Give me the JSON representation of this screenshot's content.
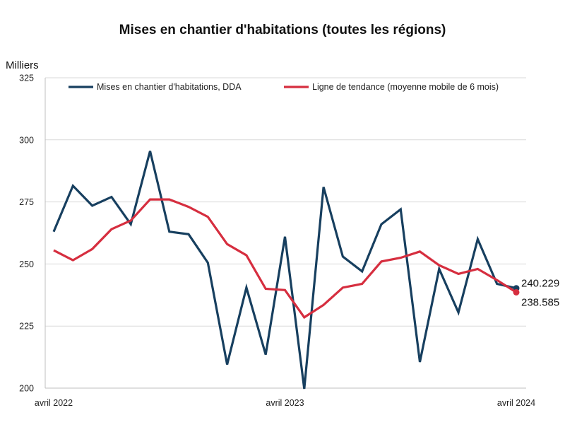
{
  "chart_data": {
    "type": "line",
    "title": "Mises en chantier d'habitations (toutes les régions)",
    "ylabel": "Milliers",
    "xlabel": "",
    "ylim": [
      200,
      325
    ],
    "yticks": [
      "200",
      "225",
      "250",
      "275",
      "300",
      "325"
    ],
    "x_tick_labels": [
      {
        "index": 0,
        "label": "avril 2022"
      },
      {
        "index": 12,
        "label": "avril 2023"
      },
      {
        "index": 24,
        "label": "avril 2024"
      }
    ],
    "series": [
      {
        "name": "Mises en chantier d'habitations, DDA",
        "color": "#173f5f",
        "values": [
          263,
          281.5,
          273.5,
          277,
          266,
          295.5,
          263,
          262,
          250.5,
          209.5,
          240.5,
          213.5,
          261,
          199,
          281,
          253,
          247,
          266,
          272,
          210.5,
          248,
          230.5,
          260,
          242,
          240.229
        ]
      },
      {
        "name": "Ligne de tendance (moyenne mobile de 6 mois)",
        "color": "#d62e3f",
        "values": [
          255.5,
          251.5,
          256,
          264,
          267.5,
          276,
          276,
          273,
          269,
          258,
          253.5,
          240,
          239.5,
          228.5,
          233.5,
          240.5,
          242,
          251,
          252.5,
          255,
          249.5,
          246,
          248,
          243.5,
          238.585
        ]
      }
    ],
    "end_labels": [
      "240.229",
      "238.585"
    ],
    "legend": "top"
  }
}
